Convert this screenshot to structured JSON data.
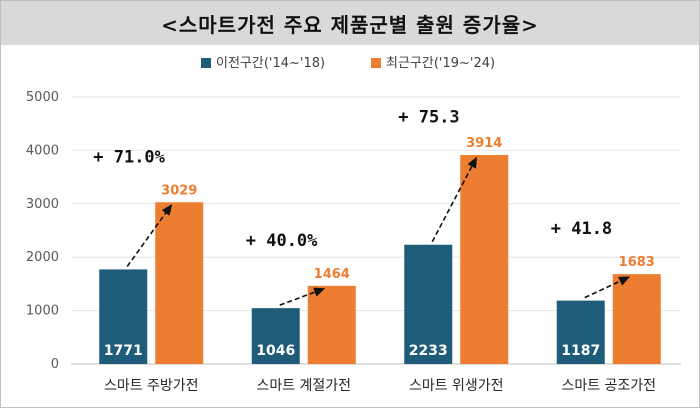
{
  "title": "<스마트가전 주요 제품군별 출원 증가율>",
  "chart_data": {
    "type": "bar",
    "categories": [
      "스마트 주방가전",
      "스마트 계절가전",
      "스마트 위생가전",
      "스마트 공조가전"
    ],
    "series": [
      {
        "name": "이전구간('14~'18)",
        "values": [
          1771,
          1046,
          2233,
          1187
        ],
        "color": "#1f5c7a"
      },
      {
        "name": "최근구간('19~'24)",
        "values": [
          3029,
          1464,
          3914,
          1683
        ],
        "color": "#ed7d31"
      }
    ],
    "growth_labels": [
      "+ 71.0%",
      "+ 40.0%",
      "+ 75.3",
      "+ 41.8"
    ],
    "yticks": [
      "0",
      "1000",
      "2000",
      "3000",
      "4000",
      "5000"
    ],
    "ylim": [
      0,
      5000
    ],
    "grid": true,
    "legend_position": "top-center"
  }
}
